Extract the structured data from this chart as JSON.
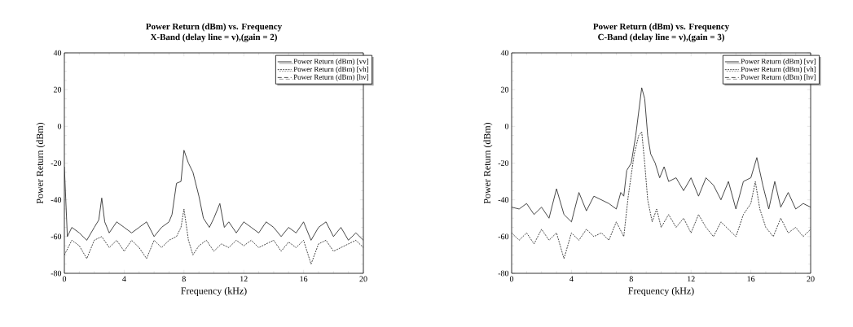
{
  "chart_data": [
    {
      "type": "line",
      "title": "Power Return (dBm) vs. Frequency",
      "subtitle": "X-Band (delay line = v),(gain = 2)",
      "xlabel": "Frequency (kHz)",
      "ylabel": "Power Return (dBm)",
      "xlim": [
        0,
        20
      ],
      "ylim": [
        -80,
        40
      ],
      "xticks": [
        0,
        4,
        8,
        12,
        16,
        20
      ],
      "yticks": [
        -80,
        -60,
        -40,
        -20,
        0,
        20,
        40
      ],
      "grid": false,
      "legend": "top right",
      "marker": "none",
      "series": [
        {
          "name": "Power Return (dBm) [vv]",
          "color": "#333333",
          "line_style": "solid",
          "x": [
            0,
            0.2,
            0.5,
            1,
            1.5,
            2,
            2.3,
            2.5,
            2.7,
            3,
            3.5,
            4,
            4.5,
            5,
            5.5,
            6,
            6.5,
            7,
            7.2,
            7.5,
            7.8,
            8,
            8.3,
            8.6,
            9,
            9.3,
            9.7,
            10,
            10.4,
            10.7,
            11,
            11.5,
            12,
            12.5,
            13,
            13.5,
            14,
            14.5,
            15,
            15.5,
            16,
            16.5,
            17,
            17.5,
            18,
            18.5,
            19,
            19.5,
            20
          ],
          "values": [
            -22,
            -60,
            -55,
            -58,
            -62,
            -55,
            -51,
            -39,
            -52,
            -58,
            -52,
            -55,
            -58,
            -55,
            -52,
            -60,
            -55,
            -52,
            -48,
            -31,
            -30,
            -13,
            -20,
            -25,
            -38,
            -50,
            -55,
            -50,
            -42,
            -55,
            -52,
            -58,
            -52,
            -55,
            -58,
            -52,
            -55,
            -60,
            -55,
            -58,
            -52,
            -62,
            -55,
            -52,
            -60,
            -55,
            -62,
            -58,
            -62
          ]
        },
        {
          "name": "Power Return (dBm) [vh]",
          "color": "#333333",
          "line_style": "dotted",
          "x": [
            0,
            0.5,
            1,
            1.5,
            2,
            2.5,
            3,
            3.5,
            4,
            4.5,
            5,
            5.5,
            6,
            6.5,
            7,
            7.5,
            7.8,
            8,
            8.3,
            8.6,
            9,
            9.5,
            10,
            10.5,
            11,
            11.5,
            12,
            12.5,
            13,
            13.5,
            14,
            14.5,
            15,
            15.5,
            16,
            16.5,
            17,
            17.5,
            18,
            18.5,
            19,
            19.5,
            20
          ],
          "values": [
            -70,
            -62,
            -65,
            -72,
            -62,
            -60,
            -66,
            -62,
            -68,
            -62,
            -66,
            -72,
            -62,
            -66,
            -62,
            -60,
            -55,
            -45,
            -62,
            -70,
            -65,
            -62,
            -68,
            -64,
            -66,
            -62,
            -65,
            -62,
            -66,
            -64,
            -62,
            -68,
            -63,
            -66,
            -62,
            -75,
            -64,
            -62,
            -68,
            -66,
            -64,
            -62,
            -66
          ]
        },
        {
          "name": "Power Return (dBm) [hv]",
          "color": "#333333",
          "line_style": "dashed"
        }
      ]
    },
    {
      "type": "line",
      "title": "Power Return (dBm) vs. Frequency",
      "subtitle": "C-Band (delay line = v),(gain = 3)",
      "xlabel": "Frequency (kHz)",
      "ylabel": "Power Return (dBm)",
      "xlim": [
        0,
        20
      ],
      "ylim": [
        -80,
        40
      ],
      "xticks": [
        0,
        4,
        8,
        12,
        16,
        20
      ],
      "yticks": [
        -80,
        -60,
        -40,
        -20,
        0,
        20,
        40
      ],
      "grid": false,
      "legend": "top right",
      "marker": "none",
      "series": [
        {
          "name": "Power Return (dBm) [vv]",
          "color": "#333333",
          "line_style": "solid",
          "x": [
            0,
            0.5,
            1,
            1.5,
            2,
            2.5,
            3,
            3.5,
            4,
            4.5,
            5,
            5.5,
            6,
            6.5,
            7,
            7.3,
            7.5,
            7.7,
            8,
            8.3,
            8.5,
            8.7,
            8.9,
            9.1,
            9.3,
            9.6,
            9.9,
            10.2,
            10.5,
            11,
            11.5,
            12,
            12.5,
            13,
            13.5,
            14,
            14.5,
            15,
            15.5,
            16,
            16.4,
            16.8,
            17.2,
            17.6,
            18,
            18.5,
            19,
            19.5,
            20
          ],
          "values": [
            -44,
            -45,
            -42,
            -48,
            -44,
            -50,
            -34,
            -48,
            -52,
            -36,
            -46,
            -38,
            -40,
            -42,
            -45,
            -36,
            -38,
            -24,
            -20,
            -5,
            8,
            21,
            15,
            -5,
            -15,
            -20,
            -28,
            -22,
            -30,
            -28,
            -35,
            -28,
            -38,
            -28,
            -32,
            -40,
            -30,
            -45,
            -30,
            -28,
            -17,
            -32,
            -45,
            -30,
            -44,
            -36,
            -45,
            -42,
            -44
          ]
        },
        {
          "name": "Power Return (dBm) [vh]",
          "color": "#333333",
          "line_style": "dotted",
          "x": [
            0,
            0.5,
            1,
            1.5,
            2,
            2.5,
            3,
            3.5,
            4,
            4.5,
            5,
            5.5,
            6,
            6.5,
            7,
            7.5,
            7.8,
            8.2,
            8.5,
            8.7,
            8.9,
            9.1,
            9.4,
            9.7,
            10,
            10.5,
            11,
            11.5,
            12,
            12.5,
            13,
            13.5,
            14,
            14.5,
            15,
            15.5,
            16,
            16.3,
            16.6,
            17,
            17.5,
            18,
            18.5,
            19,
            19.5,
            20
          ],
          "values": [
            -58,
            -62,
            -58,
            -64,
            -56,
            -62,
            -58,
            -72,
            -58,
            -62,
            -56,
            -60,
            -58,
            -62,
            -52,
            -60,
            -38,
            -15,
            -5,
            -3,
            -20,
            -40,
            -52,
            -45,
            -55,
            -48,
            -55,
            -50,
            -58,
            -48,
            -55,
            -60,
            -52,
            -56,
            -60,
            -48,
            -42,
            -30,
            -45,
            -55,
            -60,
            -50,
            -58,
            -55,
            -60,
            -56
          ]
        },
        {
          "name": "Power Return (dBm) [hv]",
          "color": "#333333",
          "line_style": "dashed"
        }
      ]
    }
  ]
}
